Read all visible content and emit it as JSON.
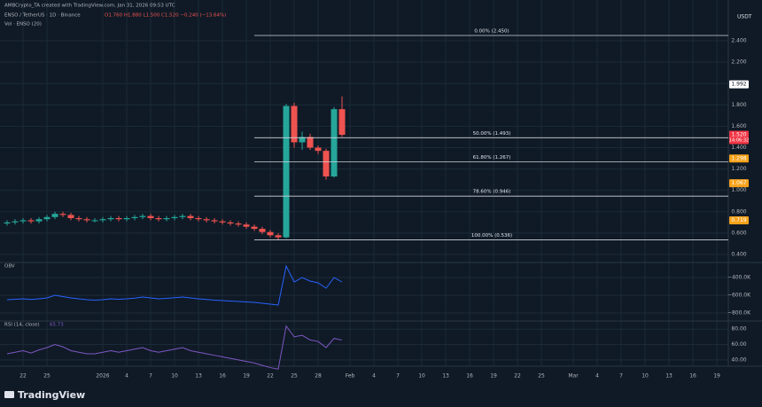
{
  "header": {
    "credit": "AMBCrypto_TA created with TradingView.com, Jan 31, 2026 09:53 UTC"
  },
  "footer": {
    "brand": "TradingView"
  },
  "chart_data": [
    {
      "type": "candlestick",
      "title": "ENSO / TetherUS · 1D · Binance",
      "ohlc_text": "O1.760 H1.880 L1.500 C1.520 −0.240 (−13.64%)",
      "volume_title": "Vol · ENSO (20)",
      "unit": "USDT",
      "up_color": "#26a69a",
      "down_color": "#ef5350",
      "x": [
        -11,
        -10,
        -9,
        -8,
        -7,
        -6,
        -5,
        -4,
        -3,
        -2,
        -1,
        0,
        1,
        2,
        3,
        4,
        5,
        6,
        7,
        8,
        9,
        10,
        11,
        12,
        13,
        14,
        15,
        16,
        17,
        18,
        19,
        20,
        21,
        22,
        23,
        24,
        25,
        26,
        27,
        28,
        29,
        30,
        31
      ],
      "open": [
        0.69,
        0.7,
        0.71,
        0.72,
        0.71,
        0.73,
        0.75,
        0.78,
        0.77,
        0.74,
        0.73,
        0.72,
        0.72,
        0.73,
        0.74,
        0.73,
        0.74,
        0.75,
        0.76,
        0.74,
        0.73,
        0.74,
        0.75,
        0.76,
        0.74,
        0.73,
        0.72,
        0.71,
        0.7,
        0.69,
        0.68,
        0.66,
        0.64,
        0.61,
        0.58,
        0.56,
        1.79,
        1.45,
        1.5,
        1.4,
        1.37,
        1.13,
        1.76
      ],
      "high": [
        0.72,
        0.73,
        0.74,
        0.74,
        0.75,
        0.77,
        0.8,
        0.8,
        0.79,
        0.76,
        0.75,
        0.74,
        0.75,
        0.76,
        0.76,
        0.76,
        0.77,
        0.78,
        0.78,
        0.76,
        0.76,
        0.77,
        0.78,
        0.78,
        0.76,
        0.75,
        0.74,
        0.73,
        0.72,
        0.71,
        0.7,
        0.68,
        0.66,
        0.63,
        0.6,
        1.81,
        1.82,
        1.55,
        1.53,
        1.42,
        1.39,
        1.78,
        1.88
      ],
      "low": [
        0.67,
        0.68,
        0.69,
        0.69,
        0.69,
        0.71,
        0.73,
        0.75,
        0.72,
        0.71,
        0.7,
        0.7,
        0.7,
        0.71,
        0.71,
        0.71,
        0.72,
        0.73,
        0.72,
        0.71,
        0.71,
        0.72,
        0.73,
        0.72,
        0.71,
        0.7,
        0.69,
        0.68,
        0.67,
        0.66,
        0.64,
        0.62,
        0.59,
        0.56,
        0.54,
        0.55,
        1.4,
        1.38,
        1.38,
        1.34,
        1.1,
        1.12,
        1.5
      ],
      "close": [
        0.7,
        0.71,
        0.72,
        0.71,
        0.73,
        0.75,
        0.78,
        0.77,
        0.74,
        0.73,
        0.72,
        0.72,
        0.73,
        0.74,
        0.73,
        0.74,
        0.75,
        0.76,
        0.74,
        0.73,
        0.74,
        0.75,
        0.76,
        0.74,
        0.73,
        0.72,
        0.71,
        0.7,
        0.69,
        0.68,
        0.66,
        0.64,
        0.61,
        0.58,
        0.56,
        1.79,
        1.45,
        1.5,
        1.4,
        1.37,
        1.13,
        1.76,
        1.52
      ],
      "xlim": [
        -11.89,
        79.44
      ],
      "ylim": [
        0.325,
        2.782
      ],
      "yticks": [
        {
          "value": 2.4,
          "label": "2.400"
        },
        {
          "value": 2.2,
          "label": "2.200"
        },
        {
          "value": 2.0,
          "label": "2.000"
        },
        {
          "value": 1.8,
          "label": "1.800"
        },
        {
          "value": 1.6,
          "label": "1.600"
        },
        {
          "value": 1.4,
          "label": "1.400"
        },
        {
          "value": 1.2,
          "label": "1.200"
        },
        {
          "value": 1.0,
          "label": "1.000"
        },
        {
          "value": 0.8,
          "label": "0.800"
        },
        {
          "value": 0.6,
          "label": "0.600"
        },
        {
          "value": 0.4,
          "label": "0.400"
        }
      ],
      "fib_levels": [
        {
          "value": 2.45,
          "label": "0.00% (2.450)"
        },
        {
          "value": 1.493,
          "label": "50.00% (1.493)"
        },
        {
          "value": 1.267,
          "label": "61.80% (1.267)"
        },
        {
          "value": 0.946,
          "label": "78.60% (0.946)"
        },
        {
          "value": 0.536,
          "label": "100.00% (0.536)"
        }
      ],
      "price_labels": [
        {
          "value": 1.992,
          "label": "1.992",
          "color": "#ffffff"
        },
        {
          "value": 1.52,
          "label": "1.520",
          "color": "#f23645"
        },
        {
          "value": 1.298,
          "label": "1.298",
          "color": "#f7a21b"
        },
        {
          "value": 1.067,
          "label": "1.067",
          "color": "#f7a21b"
        },
        {
          "value": 0.719,
          "label": "0.719",
          "color": "#f7a21b"
        }
      ],
      "countdown": "14:06:32",
      "grid": true
    },
    {
      "type": "line",
      "x": [
        -11,
        -10,
        -9,
        -8,
        -7,
        -6,
        -5,
        -4,
        -3,
        -2,
        -1,
        0,
        1,
        2,
        3,
        4,
        5,
        6,
        7,
        8,
        9,
        10,
        11,
        12,
        13,
        14,
        15,
        16,
        17,
        18,
        19,
        20,
        21,
        22,
        23,
        24,
        25,
        26,
        27,
        28,
        29,
        30,
        31
      ],
      "series": [
        {
          "name": "OBV",
          "color": "#2962ff",
          "values": [
            -650000,
            -645000,
            -640000,
            -648000,
            -640000,
            -630000,
            -600000,
            -615000,
            -630000,
            -640000,
            -650000,
            -655000,
            -650000,
            -640000,
            -645000,
            -640000,
            -632000,
            -620000,
            -630000,
            -640000,
            -635000,
            -628000,
            -620000,
            -630000,
            -640000,
            -648000,
            -655000,
            -660000,
            -665000,
            -670000,
            -675000,
            -680000,
            -690000,
            -700000,
            -710000,
            -270000,
            -450000,
            -400000,
            -440000,
            -460000,
            -520000,
            -400000,
            -450000
          ]
        }
      ],
      "xlim": [
        -11.89,
        79.44
      ],
      "ylim": [
        -890000,
        -230000
      ],
      "yticks": [
        {
          "value": -400000,
          "label": "−400.0K"
        },
        {
          "value": -600000,
          "label": "−600.0K"
        },
        {
          "value": -800000,
          "label": "−800.0K"
        }
      ],
      "grid": true
    },
    {
      "type": "line",
      "x": [
        -11,
        -10,
        -9,
        -8,
        -7,
        -6,
        -5,
        -4,
        -3,
        -2,
        -1,
        0,
        1,
        2,
        3,
        4,
        5,
        6,
        7,
        8,
        9,
        10,
        11,
        12,
        13,
        14,
        15,
        16,
        17,
        18,
        19,
        20,
        21,
        22,
        23,
        24,
        25,
        26,
        27,
        28,
        29,
        30,
        31
      ],
      "series": [
        {
          "name": "RSI (14, close)",
          "color": "#7e57c2",
          "values": [
            48,
            50,
            52,
            49,
            53,
            56,
            60,
            57,
            52,
            50,
            48,
            48,
            50,
            52,
            50,
            52,
            54,
            56,
            52,
            50,
            52,
            54,
            56,
            52,
            50,
            48,
            46,
            44,
            42,
            40,
            38,
            36,
            33,
            30,
            28,
            84,
            70,
            72,
            66,
            64,
            56,
            68,
            65.73
          ]
        }
      ],
      "xlim": [
        -11.89,
        79.44
      ],
      "ylim": [
        31.8,
        90.6
      ],
      "yticks": [
        {
          "value": 80,
          "label": "80.00"
        },
        {
          "value": 60,
          "label": "60.00"
        },
        {
          "value": 40,
          "label": "40.00"
        }
      ],
      "xticks": [
        {
          "value": -9,
          "label": "22"
        },
        {
          "value": -6,
          "label": "25"
        },
        {
          "value": 1,
          "label": "2026"
        },
        4,
        7,
        10,
        13,
        16,
        19,
        22,
        25,
        28,
        {
          "value": 32,
          "label": "Feb"
        },
        {
          "value": 35,
          "label": "4"
        },
        {
          "value": 38,
          "label": "7"
        },
        {
          "value": 41,
          "label": "10"
        },
        {
          "value": 44,
          "label": "13"
        },
        {
          "value": 47,
          "label": "16"
        },
        {
          "value": 50,
          "label": "19"
        },
        {
          "value": 53,
          "label": "22"
        },
        {
          "value": 56,
          "label": "25"
        },
        {
          "value": 60,
          "label": "Mar"
        },
        {
          "value": 63,
          "label": "4"
        },
        {
          "value": 66,
          "label": "7"
        },
        {
          "value": 69,
          "label": "10"
        },
        {
          "value": 72,
          "label": "13"
        },
        {
          "value": 75,
          "label": "16"
        },
        {
          "value": 78,
          "label": "19"
        }
      ],
      "grid": true
    }
  ]
}
